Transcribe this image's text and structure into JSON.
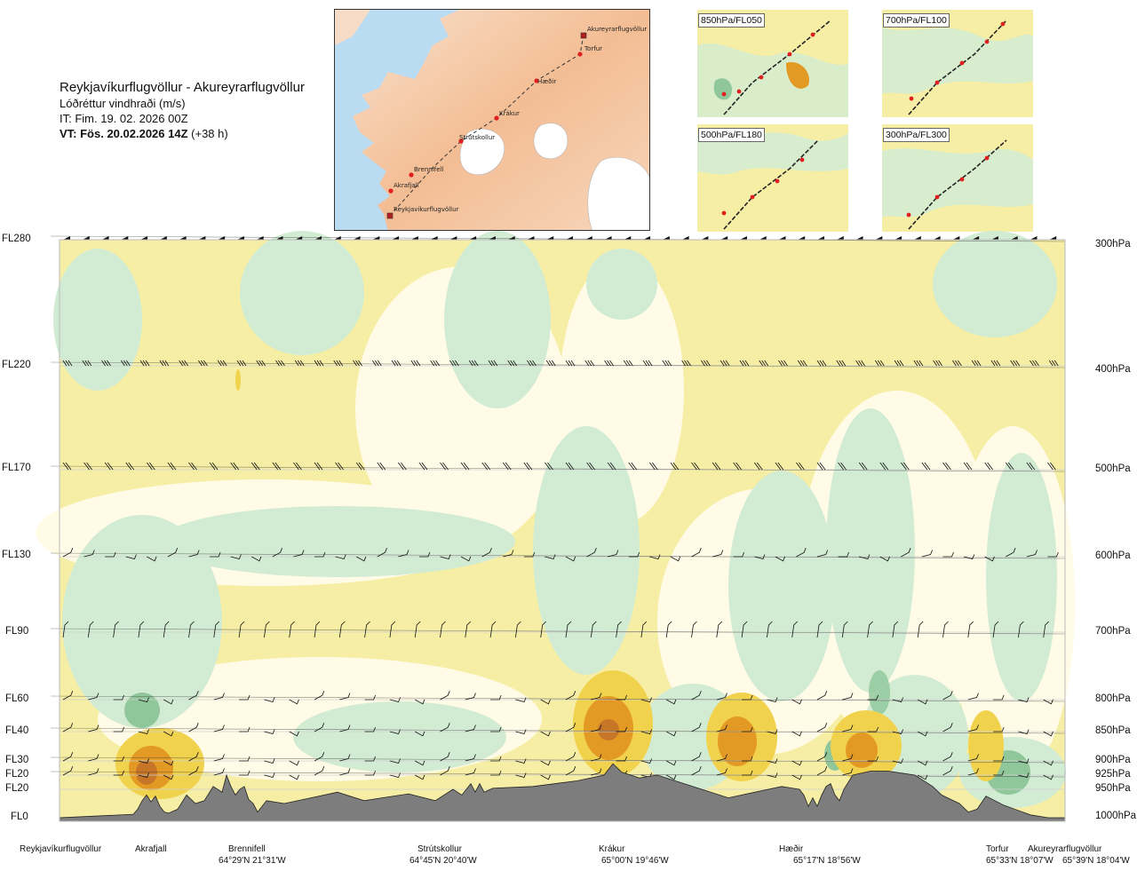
{
  "header": {
    "route": "Reykjavíkurflugvöllur - Akureyrarflugvöllur",
    "product": "Lóðréttur vindhraði (m/s)",
    "issue_time": "IT: Fim. 19. 02. 2026 00Z",
    "valid_time": "VT: Fös. 20.02.2026 14Z",
    "valid_offset": "(+38 h)"
  },
  "route_map": {
    "waypoints": [
      "Akureyrarflugvöllur",
      "Torfur",
      "Hæðir",
      "Krákur",
      "Strútskollur",
      "Brennifell",
      "Akrafjall",
      "Reykjavíkurflugvöllur"
    ]
  },
  "level_maps": [
    {
      "label": "850hPa/FL050"
    },
    {
      "label": "700hPa/FL100"
    },
    {
      "label": "500hPa/FL180"
    },
    {
      "label": "300hPa/FL300"
    }
  ],
  "chart_data": {
    "type": "heatmap",
    "title": "Lóðréttur vindhraði (m/s)",
    "y_levels_fl": [
      "FL280",
      "FL220",
      "FL170",
      "FL130",
      "FL90",
      "FL60",
      "FL40",
      "FL30",
      "FL20",
      "FL20",
      "FL0"
    ],
    "y_levels_hpa": [
      "300hPa",
      "400hPa",
      "500hPa",
      "600hPa",
      "700hPa",
      "800hPa",
      "850hPa",
      "900hPa",
      "925hPa",
      "950hPa",
      "1000hPa"
    ],
    "pressure_levels": [
      300,
      400,
      500,
      600,
      700,
      800,
      850,
      900,
      925,
      950,
      1000
    ],
    "ylim_hpa": [
      1000,
      300
    ],
    "x_locations": [
      {
        "name": "Reykjavíkurflugvöllur",
        "coord": ""
      },
      {
        "name": "Akrafjall",
        "coord": ""
      },
      {
        "name": "Brennifell",
        "coord": "64°29'N 21°31'W"
      },
      {
        "name": "Strútskollur",
        "coord": "64°45'N 20°40'W"
      },
      {
        "name": "Krákur",
        "coord": "65°00'N 19°46'W"
      },
      {
        "name": "Hæðir",
        "coord": "65°17'N 18°56'W"
      },
      {
        "name": "Torfur",
        "coord": "65°33'N 18°07'W"
      },
      {
        "name": "Akureyrarflugvöllur",
        "coord": "65°39'N 18°04'W"
      }
    ],
    "colors": {
      "strong_sink": "#8fc79a",
      "weak_sink": "#d2ecd3",
      "neutral": "#fffbe6",
      "weak_rise": "#f7eea5",
      "moderate_rise": "#f1d24d",
      "strong_rise": "#e39a25",
      "very_strong_rise": "#c77527",
      "terrain": "#7d7d7d"
    }
  }
}
